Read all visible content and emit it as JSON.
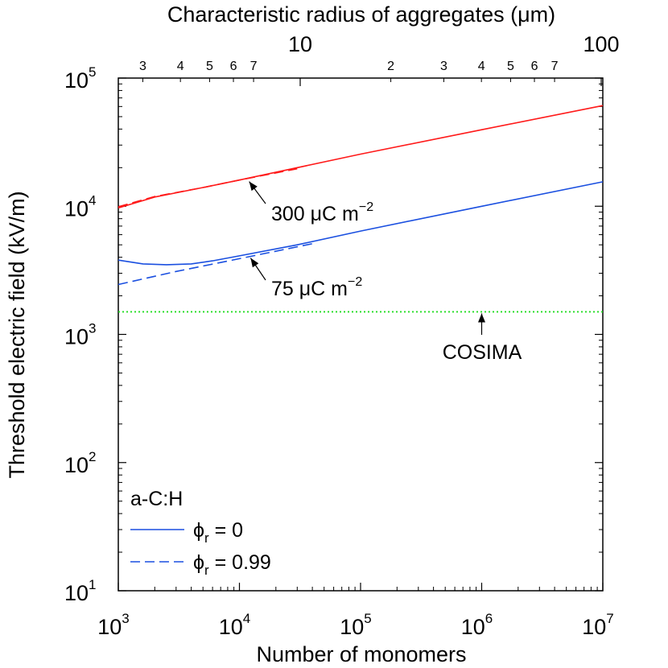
{
  "chart_data": {
    "type": "line",
    "title": "",
    "xlabel": "Number of monomers",
    "ylabel": "Threshold electric field (kV/m)",
    "top_xlabel": "Characteristic radius of aggregates (μm)",
    "x_scale": "log",
    "y_scale": "log",
    "xlim": [
      1000,
      10000000
    ],
    "ylim": [
      10,
      100000
    ],
    "grid": false,
    "x_ticks": [
      {
        "value": 1000,
        "base": "10",
        "exp": "3"
      },
      {
        "value": 10000,
        "base": "10",
        "exp": "4"
      },
      {
        "value": 100000,
        "base": "10",
        "exp": "5"
      },
      {
        "value": 1000000,
        "base": "10",
        "exp": "6"
      },
      {
        "value": 10000000,
        "base": "10",
        "exp": "7"
      }
    ],
    "y_ticks": [
      {
        "value": 10,
        "base": "10",
        "exp": "1"
      },
      {
        "value": 100,
        "base": "10",
        "exp": "2"
      },
      {
        "value": 1000,
        "base": "10",
        "exp": "3"
      },
      {
        "value": 10000,
        "base": "10",
        "exp": "4"
      },
      {
        "value": 100000,
        "base": "10",
        "exp": "5"
      }
    ],
    "top_ticks_major": [
      {
        "value": 10,
        "label": "10"
      },
      {
        "value": 100,
        "label": "100"
      }
    ],
    "top_ticks_minor": [
      {
        "value": 3,
        "label": "3"
      },
      {
        "value": 4,
        "label": "4"
      },
      {
        "value": 5,
        "label": "5"
      },
      {
        "value": 6,
        "label": "6"
      },
      {
        "value": 7,
        "label": "7"
      },
      {
        "value": 20,
        "label": "2"
      },
      {
        "value": 30,
        "label": "3"
      },
      {
        "value": 40,
        "label": "4"
      },
      {
        "value": 50,
        "label": "5"
      },
      {
        "value": 60,
        "label": "6"
      },
      {
        "value": 70,
        "label": "7"
      }
    ],
    "series": [
      {
        "charge": "300",
        "phi": "0",
        "color": "#ff1a1a",
        "dash": "solid",
        "x": [
          1000,
          2000,
          5000,
          10000,
          100000,
          1000000,
          10000000
        ],
        "y": [
          9700,
          11800,
          14000,
          16000,
          25500,
          39500,
          61000
        ]
      },
      {
        "charge": "300",
        "phi": "0.99",
        "color": "#ff1a1a",
        "dash": "dashed",
        "x": [
          1000,
          2000,
          5000,
          10000,
          30000
        ],
        "y": [
          9900,
          11900,
          14000,
          16000,
          19600
        ]
      },
      {
        "charge": "75",
        "phi": "0",
        "color": "#1a4fe0",
        "dash": "solid",
        "x": [
          1000,
          1600,
          2500,
          4000,
          6000,
          10000,
          30000,
          100000,
          1000000,
          10000000
        ],
        "y": [
          3800,
          3550,
          3500,
          3550,
          3750,
          4100,
          5000,
          6400,
          10000,
          15500
        ]
      },
      {
        "charge": "75",
        "phi": "0.99",
        "color": "#1a4fe0",
        "dash": "dashed",
        "x": [
          1000,
          3000,
          10000,
          40000
        ],
        "y": [
          2450,
          3100,
          3900,
          5100
        ]
      }
    ],
    "reference_line": {
      "label": "COSIMA",
      "y": 1500,
      "color": "#22dd22",
      "dash": "dotted"
    },
    "annotations": [
      {
        "text": "300 μC m",
        "sup": "−2",
        "arrow_to": {
          "x": 11500,
          "y": 16500
        }
      },
      {
        "text": "75 μC m",
        "sup": "−2",
        "arrow_to": {
          "x": 12000,
          "y": 4300
        }
      },
      {
        "text": "COSIMA",
        "arrow_to": {
          "x": 1000000,
          "y": 1500
        }
      }
    ],
    "legend": {
      "placement": "bottom-left",
      "title": "a-C:H",
      "entries": [
        {
          "symbol": "ϕ",
          "sub": "r",
          "value": " = 0",
          "dash": "solid",
          "color": "#1a4fe0"
        },
        {
          "symbol": "ϕ",
          "sub": "r",
          "value": " = 0.99",
          "dash": "dashed",
          "color": "#1a4fe0"
        }
      ]
    }
  }
}
